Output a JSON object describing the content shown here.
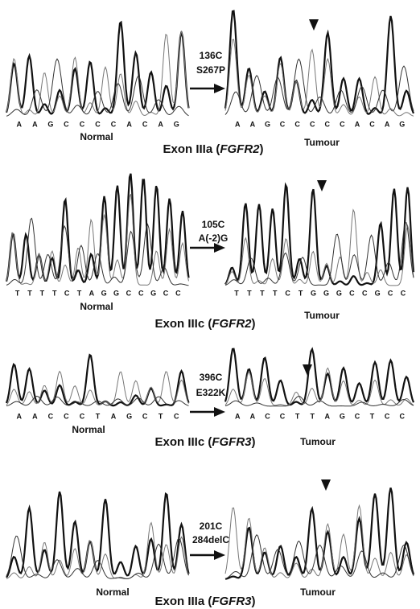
{
  "panels": [
    {
      "mutation": [
        "136C",
        "S267P"
      ],
      "normal_label": "Normal",
      "tumour_label": "Tumour",
      "normal_bases": [
        "A",
        "A",
        "G",
        "C",
        "C",
        "C",
        "C",
        "A",
        "C",
        "A",
        "G"
      ],
      "tumour_bases": [
        "A",
        "A",
        "G",
        "C",
        "C",
        "C",
        "C",
        "C",
        "A",
        "C",
        "A",
        "G"
      ],
      "exon": {
        "text": "Exon IIIa (",
        "gene": "FGFR2",
        "close": ")"
      }
    },
    {
      "mutation": [
        "105C",
        "A(-2)G"
      ],
      "normal_label": "Normal",
      "tumour_label": "Tumour",
      "normal_bases": [
        "T",
        "T",
        "T",
        "T",
        "C",
        "T",
        "A",
        "G",
        "G",
        "C",
        "C",
        "G",
        "C",
        "C"
      ],
      "tumour_bases": [
        "T",
        "T",
        "T",
        "T",
        "C",
        "T",
        "G",
        "G",
        "G",
        "C",
        "C",
        "G",
        "C",
        "C"
      ],
      "exon": {
        "text": "Exon IIIc (",
        "gene": "FGFR2",
        "close": ")"
      }
    },
    {
      "mutation": [
        "396C",
        "E322K"
      ],
      "normal_label": "Normal",
      "tumour_label": "Tumour",
      "normal_bases": [
        "A",
        "A",
        "C",
        "C",
        "C",
        "T",
        "A",
        "G",
        "C",
        "T",
        "C"
      ],
      "tumour_bases": [
        "A",
        "A",
        "C",
        "C",
        "T",
        "T",
        "A",
        "G",
        "C",
        "T",
        "C",
        "C"
      ],
      "exon": {
        "text": "Exon IIIc (",
        "gene": "FGFR3",
        "close": ")"
      }
    },
    {
      "mutation": [
        "201C",
        "284delC"
      ],
      "normal_label": "Normal",
      "tumour_label": "Tumour",
      "normal_bases": [],
      "tumour_bases": [],
      "exon": {
        "text": "Exon IIIa (",
        "gene": "FGFR3",
        "close": ")"
      }
    }
  ]
}
